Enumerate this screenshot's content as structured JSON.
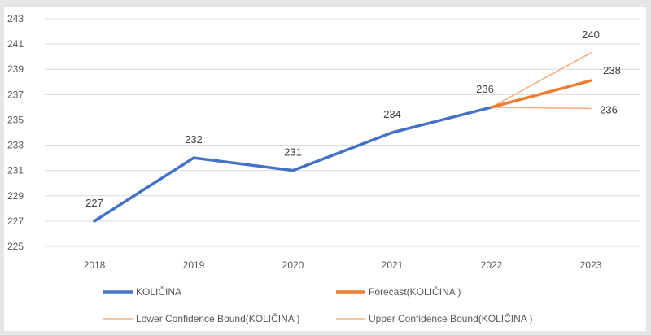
{
  "chart_data": {
    "type": "line",
    "title": "",
    "xlabel": "",
    "ylabel": "",
    "categories": [
      "2018",
      "2019",
      "2020",
      "2021",
      "2022",
      "2023"
    ],
    "ylim": [
      225,
      243
    ],
    "yticks": [
      225,
      227,
      229,
      231,
      233,
      235,
      237,
      239,
      241,
      243
    ],
    "grid": "horizontal",
    "legend_position": "bottom",
    "series": [
      {
        "name": "KOLIČINA",
        "color": "#4472c4",
        "style": "thick",
        "points": [
          {
            "x": "2018",
            "y": 227,
            "label": "227"
          },
          {
            "x": "2019",
            "y": 232,
            "label": "232"
          },
          {
            "x": "2020",
            "y": 231,
            "label": "231"
          },
          {
            "x": "2021",
            "y": 234,
            "label": "234"
          },
          {
            "x": "2022",
            "y": 236,
            "label": "236"
          }
        ]
      },
      {
        "name": "Forecast(KOLIČINA )",
        "color": "#ed7d31",
        "style": "thick",
        "points": [
          {
            "x": "2022",
            "y": 236
          },
          {
            "x": "2023",
            "y": 238.1,
            "label": "238",
            "label_color": "#e0352b"
          }
        ]
      },
      {
        "name": "Lower Confidence Bound(KOLIČINA )",
        "color": "#f4b183",
        "style": "thin",
        "points": [
          {
            "x": "2022",
            "y": 236
          },
          {
            "x": "2023",
            "y": 235.9,
            "label": "236"
          }
        ]
      },
      {
        "name": "Upper Confidence Bound(KOLIČINA )",
        "color": "#f4b183",
        "style": "thin",
        "points": [
          {
            "x": "2022",
            "y": 236
          },
          {
            "x": "2023",
            "y": 240.3,
            "label": "240"
          }
        ]
      }
    ]
  }
}
